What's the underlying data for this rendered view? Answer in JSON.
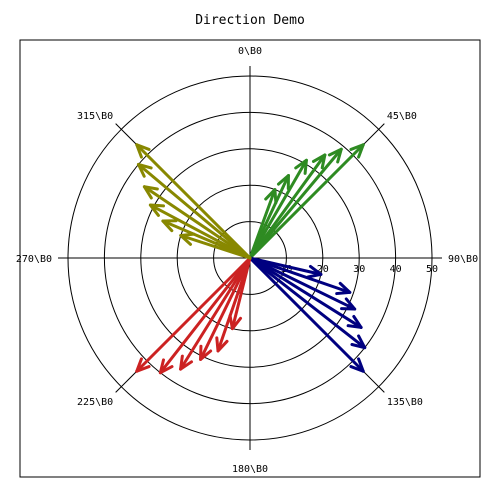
{
  "chart_data": {
    "type": "polar-vector",
    "title": "Direction Demo",
    "direction_labels": [
      {
        "angle": 0,
        "label": "0\\B0"
      },
      {
        "angle": 45,
        "label": "45\\B0"
      },
      {
        "angle": 90,
        "label": "90\\B0"
      },
      {
        "angle": 135,
        "label": "135\\B0"
      },
      {
        "angle": 180,
        "label": "180\\B0"
      },
      {
        "angle": 225,
        "label": "225\\B0"
      },
      {
        "angle": 270,
        "label": "270\\B0"
      },
      {
        "angle": 315,
        "label": "315\\B0"
      }
    ],
    "radial_ticks": [
      10,
      20,
      30,
      40,
      50
    ],
    "r_max": 50,
    "grid": true,
    "series": [
      {
        "color": "#2e8b22",
        "vectors": [
          {
            "angle": 45,
            "magnitude": 44
          },
          {
            "angle": 40,
            "magnitude": 39
          },
          {
            "angle": 36,
            "magnitude": 35
          },
          {
            "angle": 30,
            "magnitude": 31
          },
          {
            "angle": 25,
            "magnitude": 25
          },
          {
            "angle": 20,
            "magnitude": 20
          }
        ]
      },
      {
        "color": "#000080",
        "vectors": [
          {
            "angle": 135,
            "magnitude": 44
          },
          {
            "angle": 128,
            "magnitude": 40
          },
          {
            "angle": 122,
            "magnitude": 36
          },
          {
            "angle": 116,
            "magnitude": 32
          },
          {
            "angle": 109,
            "magnitude": 29
          },
          {
            "angle": 103,
            "magnitude": 20
          }
        ]
      },
      {
        "color": "#cc2222",
        "vectors": [
          {
            "angle": 225,
            "magnitude": 44
          },
          {
            "angle": 218,
            "magnitude": 40
          },
          {
            "angle": 212,
            "magnitude": 36
          },
          {
            "angle": 206,
            "magnitude": 31
          },
          {
            "angle": 199,
            "magnitude": 27
          },
          {
            "angle": 194,
            "magnitude": 20
          }
        ]
      },
      {
        "color": "#888800",
        "vectors": [
          {
            "angle": 315,
            "magnitude": 44
          },
          {
            "angle": 310,
            "magnitude": 40
          },
          {
            "angle": 304,
            "magnitude": 35
          },
          {
            "angle": 298,
            "magnitude": 31
          },
          {
            "angle": 293,
            "magnitude": 26
          },
          {
            "angle": 288,
            "magnitude": 20
          }
        ]
      }
    ]
  }
}
